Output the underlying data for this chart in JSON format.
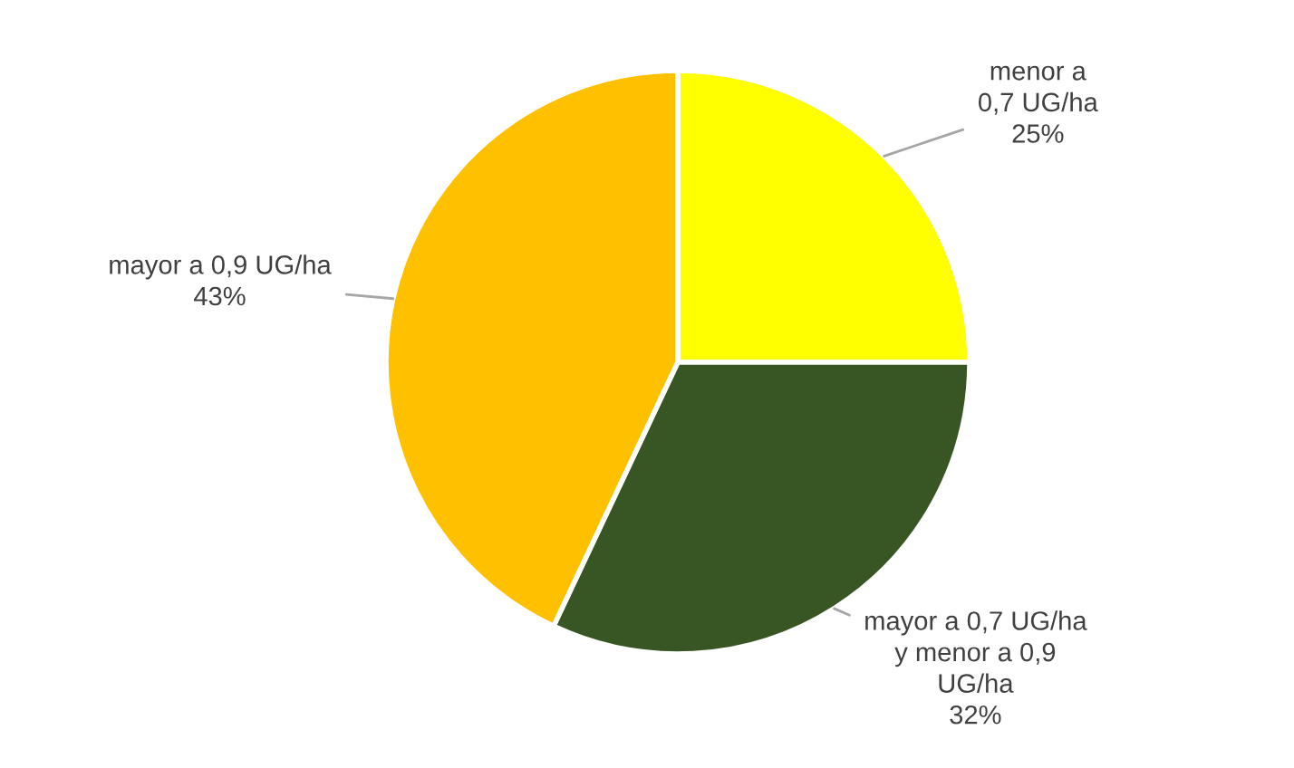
{
  "chart_data": {
    "type": "pie",
    "categories": [
      "menor a\n0,7 UG/ha",
      "mayor a 0,7 UG/ha\ny menor a 0,9\nUG/ha",
      "mayor a 0,9 UG/ha"
    ],
    "values": [
      25,
      32,
      43
    ],
    "colors": [
      "#ffff00",
      "#375623",
      "#ffc000"
    ],
    "value_labels": [
      "25%",
      "32%",
      "43%"
    ],
    "legend": false
  }
}
